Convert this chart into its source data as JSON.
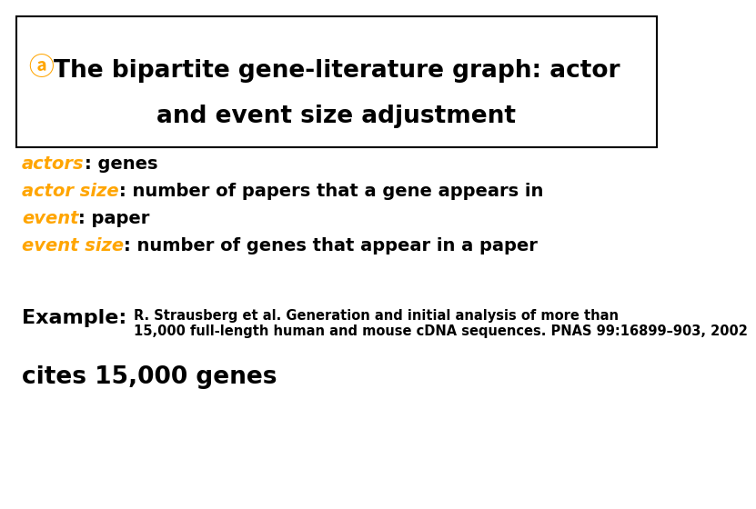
{
  "background_color": "#ffffff",
  "title_line1": "The bipartite gene-literature graph: actor",
  "title_line2": "and event size adjustment",
  "title_color": "#000000",
  "title_fontsize": 19,
  "title_box_color": "#000000",
  "bullet_symbol": "ⓐ",
  "bullet_color": "#FFA500",
  "bullet_fontsize": 20,
  "lines": [
    {
      "parts": [
        {
          "text": "actors",
          "color": "#FFA500",
          "style": "italic",
          "weight": "bold"
        },
        {
          "text": ": genes",
          "color": "#000000",
          "style": "normal",
          "weight": "bold"
        }
      ]
    },
    {
      "parts": [
        {
          "text": "actor size",
          "color": "#FFA500",
          "style": "italic",
          "weight": "bold"
        },
        {
          "text": ": number of papers that a gene appears in",
          "color": "#000000",
          "style": "normal",
          "weight": "bold"
        }
      ]
    },
    {
      "parts": [
        {
          "text": "event",
          "color": "#FFA500",
          "style": "italic",
          "weight": "bold"
        },
        {
          "text": ": paper",
          "color": "#000000",
          "style": "normal",
          "weight": "bold"
        }
      ]
    },
    {
      "parts": [
        {
          "text": "event size",
          "color": "#FFA500",
          "style": "italic",
          "weight": "bold"
        },
        {
          "text": ": number of genes that appear in a paper",
          "color": "#000000",
          "style": "normal",
          "weight": "bold"
        }
      ]
    }
  ],
  "lines_fontsize": 14,
  "example_label": "Example: ",
  "example_label_fontsize": 16,
  "example_ref": "R. Strausberg et al. Generation and initial analysis of more than\n15,000 full-length human and mouse cDNA sequences. PNAS 99:16899–903, 2002",
  "example_ref_fontsize": 10.5,
  "example_cite": "cites 15,000 genes",
  "example_cite_fontsize": 19
}
